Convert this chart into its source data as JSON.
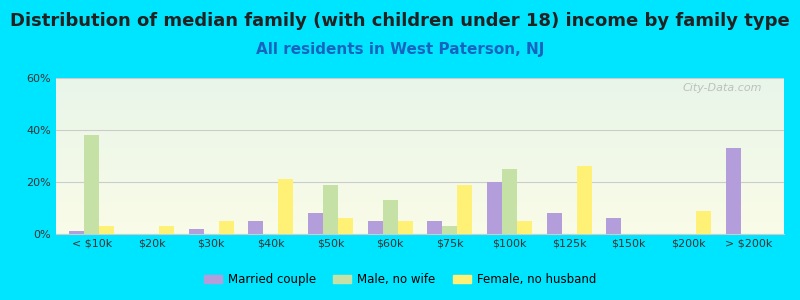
{
  "title": "Distribution of median family (with children under 18) income by family type",
  "subtitle": "All residents in West Paterson, NJ",
  "categories": [
    "< $10k",
    "$20k",
    "$30k",
    "$40k",
    "$50k",
    "$60k",
    "$75k",
    "$100k",
    "$125k",
    "$150k",
    "$200k",
    "> $200k"
  ],
  "series": {
    "married": [
      1,
      0,
      2,
      5,
      8,
      5,
      5,
      20,
      8,
      6,
      0,
      33
    ],
    "male_no_wife": [
      38,
      0,
      0,
      0,
      19,
      13,
      3,
      25,
      0,
      0,
      0,
      0
    ],
    "female_no_husband": [
      3,
      3,
      5,
      21,
      6,
      5,
      19,
      5,
      26,
      0,
      9,
      0
    ]
  },
  "colors": {
    "married": "#b39ddb",
    "male_no_wife": "#c5e1a5",
    "female_no_husband": "#fff176"
  },
  "legend_labels": [
    "Married couple",
    "Male, no wife",
    "Female, no husband"
  ],
  "ylim": [
    0,
    60
  ],
  "yticks": [
    0,
    20,
    40,
    60
  ],
  "ytick_labels": [
    "0%",
    "20%",
    "40%",
    "60%"
  ],
  "background_color": "#00e5ff",
  "plot_bg_top": "#e8f5e9",
  "plot_bg_bottom": "#f9fbe7",
  "title_fontsize": 13,
  "subtitle_fontsize": 11,
  "watermark": "City-Data.com"
}
